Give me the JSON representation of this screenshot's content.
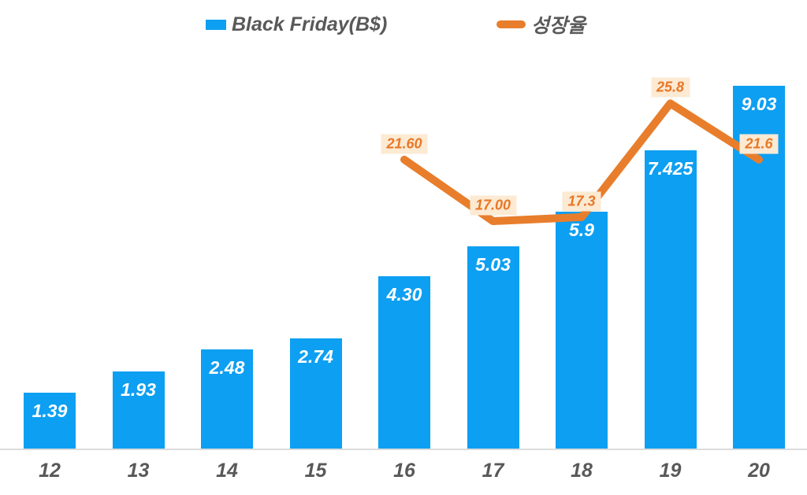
{
  "colors": {
    "background": "#FFFFFF",
    "bar": "#0D9FF2",
    "line": "#E87E2C",
    "bar_label_text": "#FFFFFF",
    "line_label_bg": "#FCEAD3",
    "line_label_text": "#E87727",
    "axis_text": "#595959",
    "axis_line": "#DCDCDC"
  },
  "chart_data": {
    "type": "combo-bar-line",
    "title": "",
    "xlabel": "",
    "ylabel": "",
    "grid": false,
    "legend_position": "top",
    "categories": [
      "12",
      "13",
      "14",
      "15",
      "16",
      "17",
      "18",
      "19",
      "20"
    ],
    "bar_ylim": [
      0,
      10
    ],
    "line_ylim": [
      0,
      30
    ],
    "series": [
      {
        "name": "Black Friday(B$)",
        "type": "bar",
        "values": [
          1.39,
          1.93,
          2.48,
          2.74,
          4.3,
          5.03,
          5.9,
          7.425,
          9.03
        ],
        "labels": [
          "1.39",
          "1.93",
          "2.48",
          "2.74",
          "4.30",
          "5.03",
          "5.9",
          "7.425",
          "9.03"
        ]
      },
      {
        "name": "성장율",
        "type": "line",
        "values": [
          null,
          null,
          null,
          null,
          21.6,
          17.0,
          17.3,
          25.8,
          21.6
        ],
        "labels": [
          null,
          null,
          null,
          null,
          "21.60",
          "17.00",
          "17.3",
          "25.8",
          "21.6"
        ]
      }
    ]
  }
}
